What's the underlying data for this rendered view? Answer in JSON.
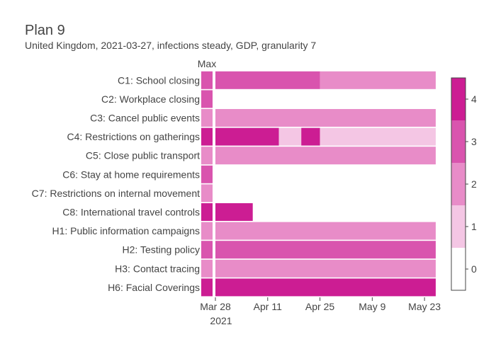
{
  "chart_data": {
    "type": "heatmap",
    "title": "Plan 9",
    "subtitle": "United Kingdom, 2021-03-27, infections steady, GDP, granularity 7",
    "max_label": "Max",
    "x_ticks": [
      "Mar 28",
      "Apr 11",
      "Apr 25",
      "May 9",
      "May 23"
    ],
    "x_year_label": "2021",
    "colorbar": {
      "ticks": [
        "0",
        "1",
        "2",
        "3",
        "4"
      ],
      "range": [
        -0.5,
        4.5
      ],
      "colors": [
        "#ffffff",
        "#f4c6e4",
        "#e88cc8",
        "#d954ae",
        "#cc1d93"
      ]
    },
    "rows": [
      {
        "label": "C1: School closing",
        "max": 3,
        "segments": [
          {
            "start": "2021-03-28",
            "end": "2021-04-25",
            "value": 3
          },
          {
            "start": "2021-04-25",
            "end": "2021-05-26",
            "value": 2
          }
        ]
      },
      {
        "label": "C2: Workplace closing",
        "max": 3,
        "segments": []
      },
      {
        "label": "C3: Cancel public events",
        "max": 2,
        "segments": [
          {
            "start": "2021-03-28",
            "end": "2021-05-26",
            "value": 2
          }
        ]
      },
      {
        "label": "C4: Restrictions on gatherings",
        "max": 4,
        "segments": [
          {
            "start": "2021-03-28",
            "end": "2021-04-14",
            "value": 4
          },
          {
            "start": "2021-04-14",
            "end": "2021-04-20",
            "value": 1
          },
          {
            "start": "2021-04-20",
            "end": "2021-04-25",
            "value": 4
          },
          {
            "start": "2021-04-25",
            "end": "2021-05-26",
            "value": 1
          }
        ]
      },
      {
        "label": "C5: Close public transport",
        "max": 2,
        "segments": [
          {
            "start": "2021-03-28",
            "end": "2021-05-26",
            "value": 2
          }
        ]
      },
      {
        "label": "C6: Stay at home requirements",
        "max": 3,
        "segments": []
      },
      {
        "label": "C7: Restrictions on internal movement",
        "max": 2,
        "segments": []
      },
      {
        "label": "C8: International travel controls",
        "max": 4,
        "segments": [
          {
            "start": "2021-03-28",
            "end": "2021-04-07",
            "value": 4
          }
        ]
      },
      {
        "label": "H1: Public information campaigns",
        "max": 2,
        "segments": [
          {
            "start": "2021-03-28",
            "end": "2021-05-26",
            "value": 2
          }
        ]
      },
      {
        "label": "H2: Testing policy",
        "max": 3,
        "segments": [
          {
            "start": "2021-03-28",
            "end": "2021-05-26",
            "value": 3
          }
        ]
      },
      {
        "label": "H3: Contact tracing",
        "max": 2,
        "segments": [
          {
            "start": "2021-03-28",
            "end": "2021-05-26",
            "value": 2
          }
        ]
      },
      {
        "label": "H6: Facial Coverings",
        "max": 4,
        "segments": [
          {
            "start": "2021-03-28",
            "end": "2021-05-26",
            "value": 4
          }
        ]
      }
    ]
  }
}
